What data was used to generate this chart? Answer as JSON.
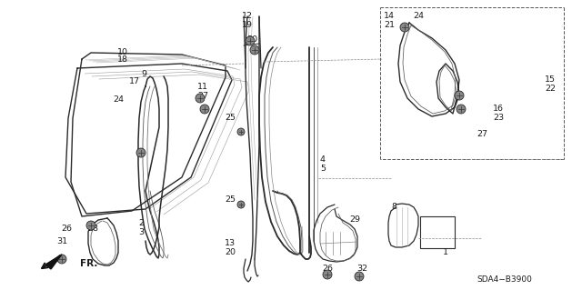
{
  "background_color": "#ffffff",
  "line_color": "#2a2a2a",
  "text_color": "#1a1a1a",
  "fig_width": 6.4,
  "fig_height": 3.19,
  "dpi": 100,
  "diagram_code": "SDA4−B3900"
}
